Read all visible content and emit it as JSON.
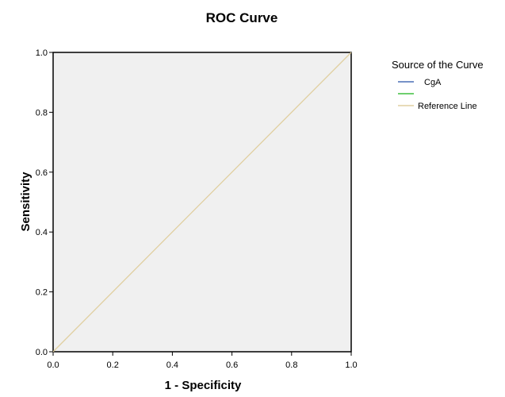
{
  "chart_data": {
    "type": "line",
    "title": "ROC Curve",
    "xlabel": "1 - Specificity",
    "ylabel": "Sensitivity",
    "xlim": [
      0.0,
      1.0
    ],
    "ylim": [
      0.0,
      1.0
    ],
    "xticks": [
      "0.0",
      "0.2",
      "0.4",
      "0.6",
      "0.8",
      "1.0"
    ],
    "yticks": [
      "0.0",
      "0.2",
      "0.4",
      "0.6",
      "0.8",
      "1.0"
    ],
    "grid": false,
    "legend_position": "right",
    "legend_title": "Source of the Curve",
    "series": [
      {
        "name": "CgA",
        "color": "#4a6fb5",
        "x": [],
        "y": []
      },
      {
        "name": "",
        "color": "#3fbf3f",
        "x": [],
        "y": []
      },
      {
        "name": "Reference Line",
        "color": "#e0cfa0",
        "x": [
          0.0,
          1.0
        ],
        "y": [
          0.0,
          1.0
        ]
      }
    ]
  }
}
